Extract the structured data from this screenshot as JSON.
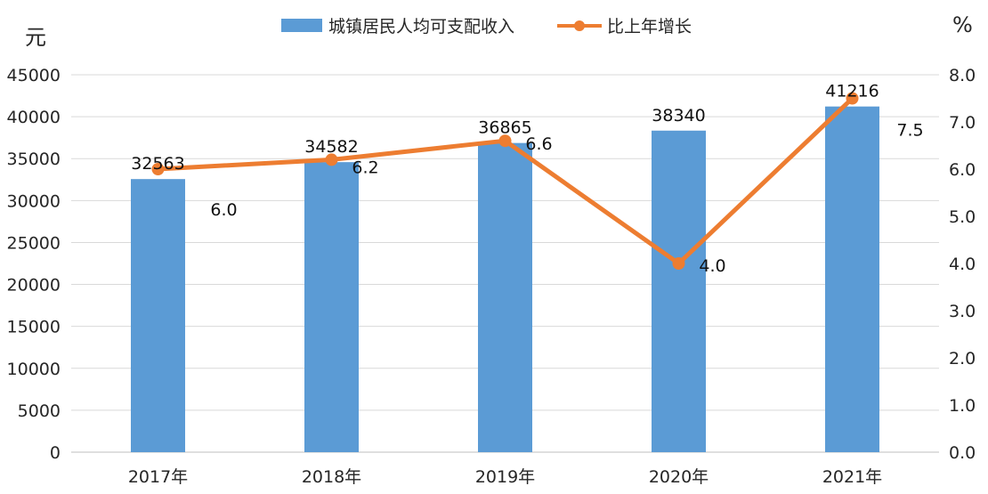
{
  "chart_data": {
    "type": "bar",
    "categories": [
      "2017年",
      "2018年",
      "2019年",
      "2020年",
      "2021年"
    ],
    "series": [
      {
        "name": "城镇居民人均可支配收入",
        "type": "bar",
        "axis": "left",
        "color": "#5B9BD5",
        "values": [
          32563,
          34582,
          36865,
          38340,
          41216
        ],
        "labels": [
          "32563",
          "34582",
          "36865",
          "38340",
          "41216"
        ]
      },
      {
        "name": "比上年增长",
        "type": "line",
        "axis": "right",
        "color": "#ED7D31",
        "values": [
          6.0,
          6.2,
          6.6,
          4.0,
          7.5
        ],
        "labels": [
          "6.0",
          "6.2",
          "6.6",
          "4.0",
          "7.5"
        ]
      }
    ],
    "left_axis": {
      "unit": "元",
      "min": 0,
      "max": 45000,
      "ticks": [
        "0",
        "5000",
        "10000",
        "15000",
        "20000",
        "25000",
        "30000",
        "35000",
        "40000",
        "45000"
      ]
    },
    "right_axis": {
      "unit": "%",
      "min": 0,
      "max": 8,
      "ticks": [
        "0.0",
        "1.0",
        "2.0",
        "3.0",
        "4.0",
        "5.0",
        "6.0",
        "7.0",
        "8.0"
      ]
    },
    "grid": true,
    "legend_position": "top"
  }
}
